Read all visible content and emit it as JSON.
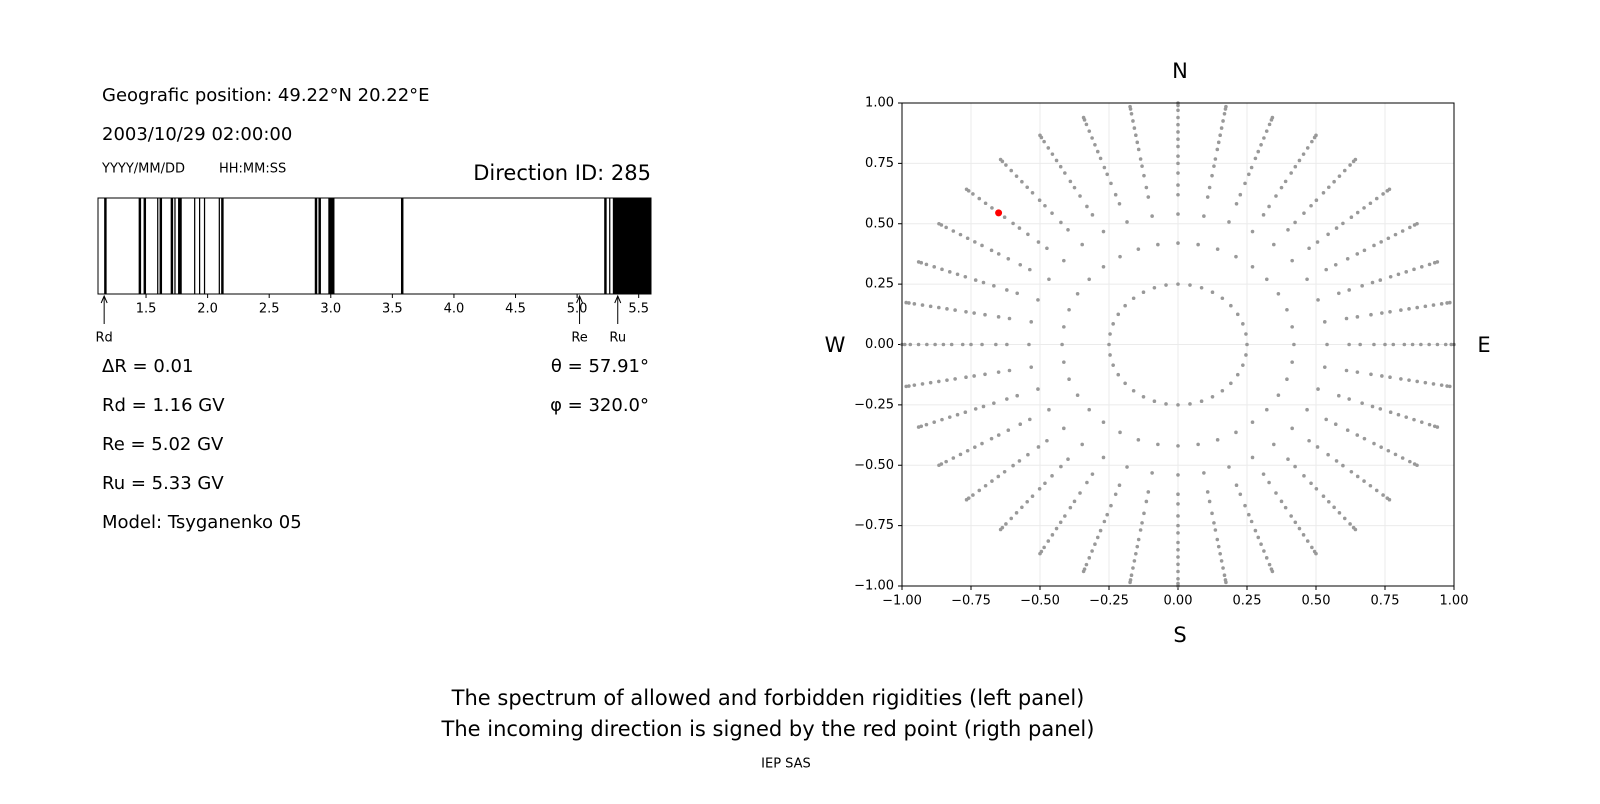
{
  "chart_data": [
    {
      "type": "spectrum",
      "position": "Geografic position: 49.22°N 20.22°E",
      "datetime": "2003/10/29 02:00:00",
      "date_format": "YYYY/MM/DD",
      "time_format": "HH:MM:SS",
      "direction": "Direction ID: 285",
      "xlim": [
        1.11,
        5.6
      ],
      "xticks": [
        1.5,
        {
          "value": 2,
          "label": "2.0"
        },
        2.5,
        {
          "value": 3,
          "label": "3.0"
        },
        3.5,
        {
          "value": 4,
          "label": "4.0"
        },
        4.5,
        {
          "value": 5,
          "label": "5.0"
        },
        5.5
      ],
      "color": "#000000",
      "forbidden": [
        [
          1.16,
          1.18
        ],
        [
          1.44,
          1.46
        ],
        [
          1.48,
          1.5
        ],
        [
          1.59,
          1.6
        ],
        [
          1.61,
          1.63
        ],
        [
          1.7,
          1.72
        ],
        [
          1.73,
          1.74
        ],
        [
          1.76,
          1.79
        ],
        [
          1.89,
          1.9
        ],
        [
          1.93,
          1.94
        ],
        [
          1.97,
          1.98
        ],
        [
          2.09,
          2.1
        ],
        [
          2.11,
          2.13
        ],
        [
          2.87,
          2.89
        ],
        [
          2.9,
          2.92
        ],
        [
          2.98,
          3.03
        ],
        [
          3.57,
          3.59
        ],
        [
          5.22,
          5.24
        ],
        [
          5.26,
          5.27
        ],
        [
          5.29,
          5.6
        ]
      ],
      "markers": [
        {
          "name": "Rd",
          "value": 1.16
        },
        {
          "name": "Re",
          "value": 5.02
        },
        {
          "name": "Ru",
          "value": 5.33
        }
      ],
      "info_left": [
        "ΔR = 0.01",
        "Rd = 1.16 GV",
        "Re = 5.02 GV",
        "Ru = 5.33 GV",
        "Model: Tsyganenko 05"
      ],
      "info_right": [
        "θ = 57.91°",
        "φ = 320.0°"
      ]
    },
    {
      "type": "direction-map",
      "compass": {
        "north": "N",
        "south": "S",
        "west": "W",
        "east": "E"
      },
      "xlim": [
        -1,
        1
      ],
      "ylim": [
        -1,
        1
      ],
      "xticks": [
        {
          "value": -1,
          "label": "−1.00"
        },
        {
          "value": -0.75,
          "label": "−0.75"
        },
        {
          "value": -0.5,
          "label": "−0.50"
        },
        {
          "value": -0.25,
          "label": "−0.25"
        },
        {
          "value": 0,
          "label": "0.00"
        },
        {
          "value": 0.25,
          "label": "0.25"
        },
        {
          "value": 0.5,
          "label": "0.50"
        },
        {
          "value": 0.75,
          "label": "0.75"
        },
        {
          "value": 1,
          "label": "1.00"
        }
      ],
      "yticks": [
        {
          "value": -1,
          "label": "−1.00"
        },
        {
          "value": -0.75,
          "label": "−0.75"
        },
        {
          "value": -0.5,
          "label": "−0.50"
        },
        {
          "value": -0.25,
          "label": "−0.25"
        },
        {
          "value": 0,
          "label": "0.00"
        },
        {
          "value": 0.25,
          "label": "0.25"
        },
        {
          "value": 0.5,
          "label": "0.50"
        },
        {
          "value": 0.75,
          "label": "0.75"
        },
        {
          "value": 1,
          "label": "1.00"
        }
      ],
      "grid": true,
      "directions": {
        "color": "#999999",
        "azimuths": [
          0,
          10,
          20,
          30,
          40,
          50,
          60,
          70,
          80,
          90,
          100,
          110,
          120,
          130,
          140,
          150,
          160,
          170,
          180,
          190,
          200,
          210,
          220,
          230,
          240,
          250,
          260,
          270,
          280,
          290,
          300,
          310,
          320,
          330,
          340,
          350
        ],
        "radii": [
          0.25,
          0.42,
          0.54,
          0.62,
          0.66,
          0.71,
          0.75,
          0.78,
          0.82,
          0.85,
          0.88,
          0.91,
          0.94,
          0.97,
          0.99,
          1.0
        ]
      },
      "incoming": {
        "color": "#ff0000",
        "x": -0.65,
        "y": 0.545
      }
    }
  ],
  "footer": {
    "caption": [
      "The spectrum of allowed and forbidden rigidities (left panel)",
      "The incoming direction is signed by the red point (rigth panel)"
    ],
    "credit": "IEP SAS"
  }
}
